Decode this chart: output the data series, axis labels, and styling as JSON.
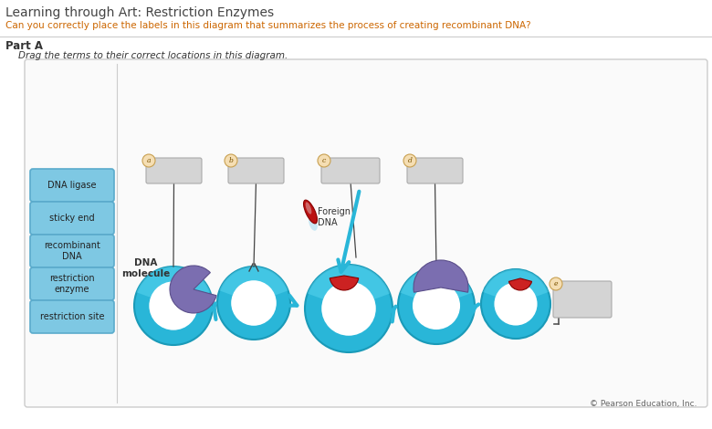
{
  "title": "Learning through Art: Restriction Enzymes",
  "subtitle": "Can you correctly place the labels in this diagram that summarizes the process of creating recombinant DNA?",
  "part_label": "Part A",
  "instruction": "Drag the terms to their correct locations in this diagram.",
  "term_buttons": [
    "DNA ligase",
    "sticky end",
    "recombinant\nDNA",
    "restriction\nenzyme",
    "restriction site"
  ],
  "foreign_dna_label": "Foreign\nDNA",
  "dna_molecule_label": "DNA\nmolecule",
  "copyright": "© Pearson Education, Inc.",
  "bg_color": "#ffffff",
  "button_color": "#7ec8e3",
  "button_border": "#5aabcc",
  "title_color": "#444444",
  "subtitle_color": "#cc6600",
  "text_color": "#333333",
  "circle_blue": "#29b6d8",
  "circle_blue_dark": "#1a9ab8",
  "circle_blue_grad": "#5cd6f0",
  "arrow_color": "#29b6d8",
  "enzyme_color": "#7b6eb0",
  "enzyme_dark": "#5a4e8a",
  "red_color": "#cc2222",
  "box_fill": "#d4d4d4",
  "box_edge": "#aaaaaa",
  "label_circle_fill": "#f5deb3",
  "label_circle_edge": "#c8a050",
  "label_letter_color": "#7a5200"
}
